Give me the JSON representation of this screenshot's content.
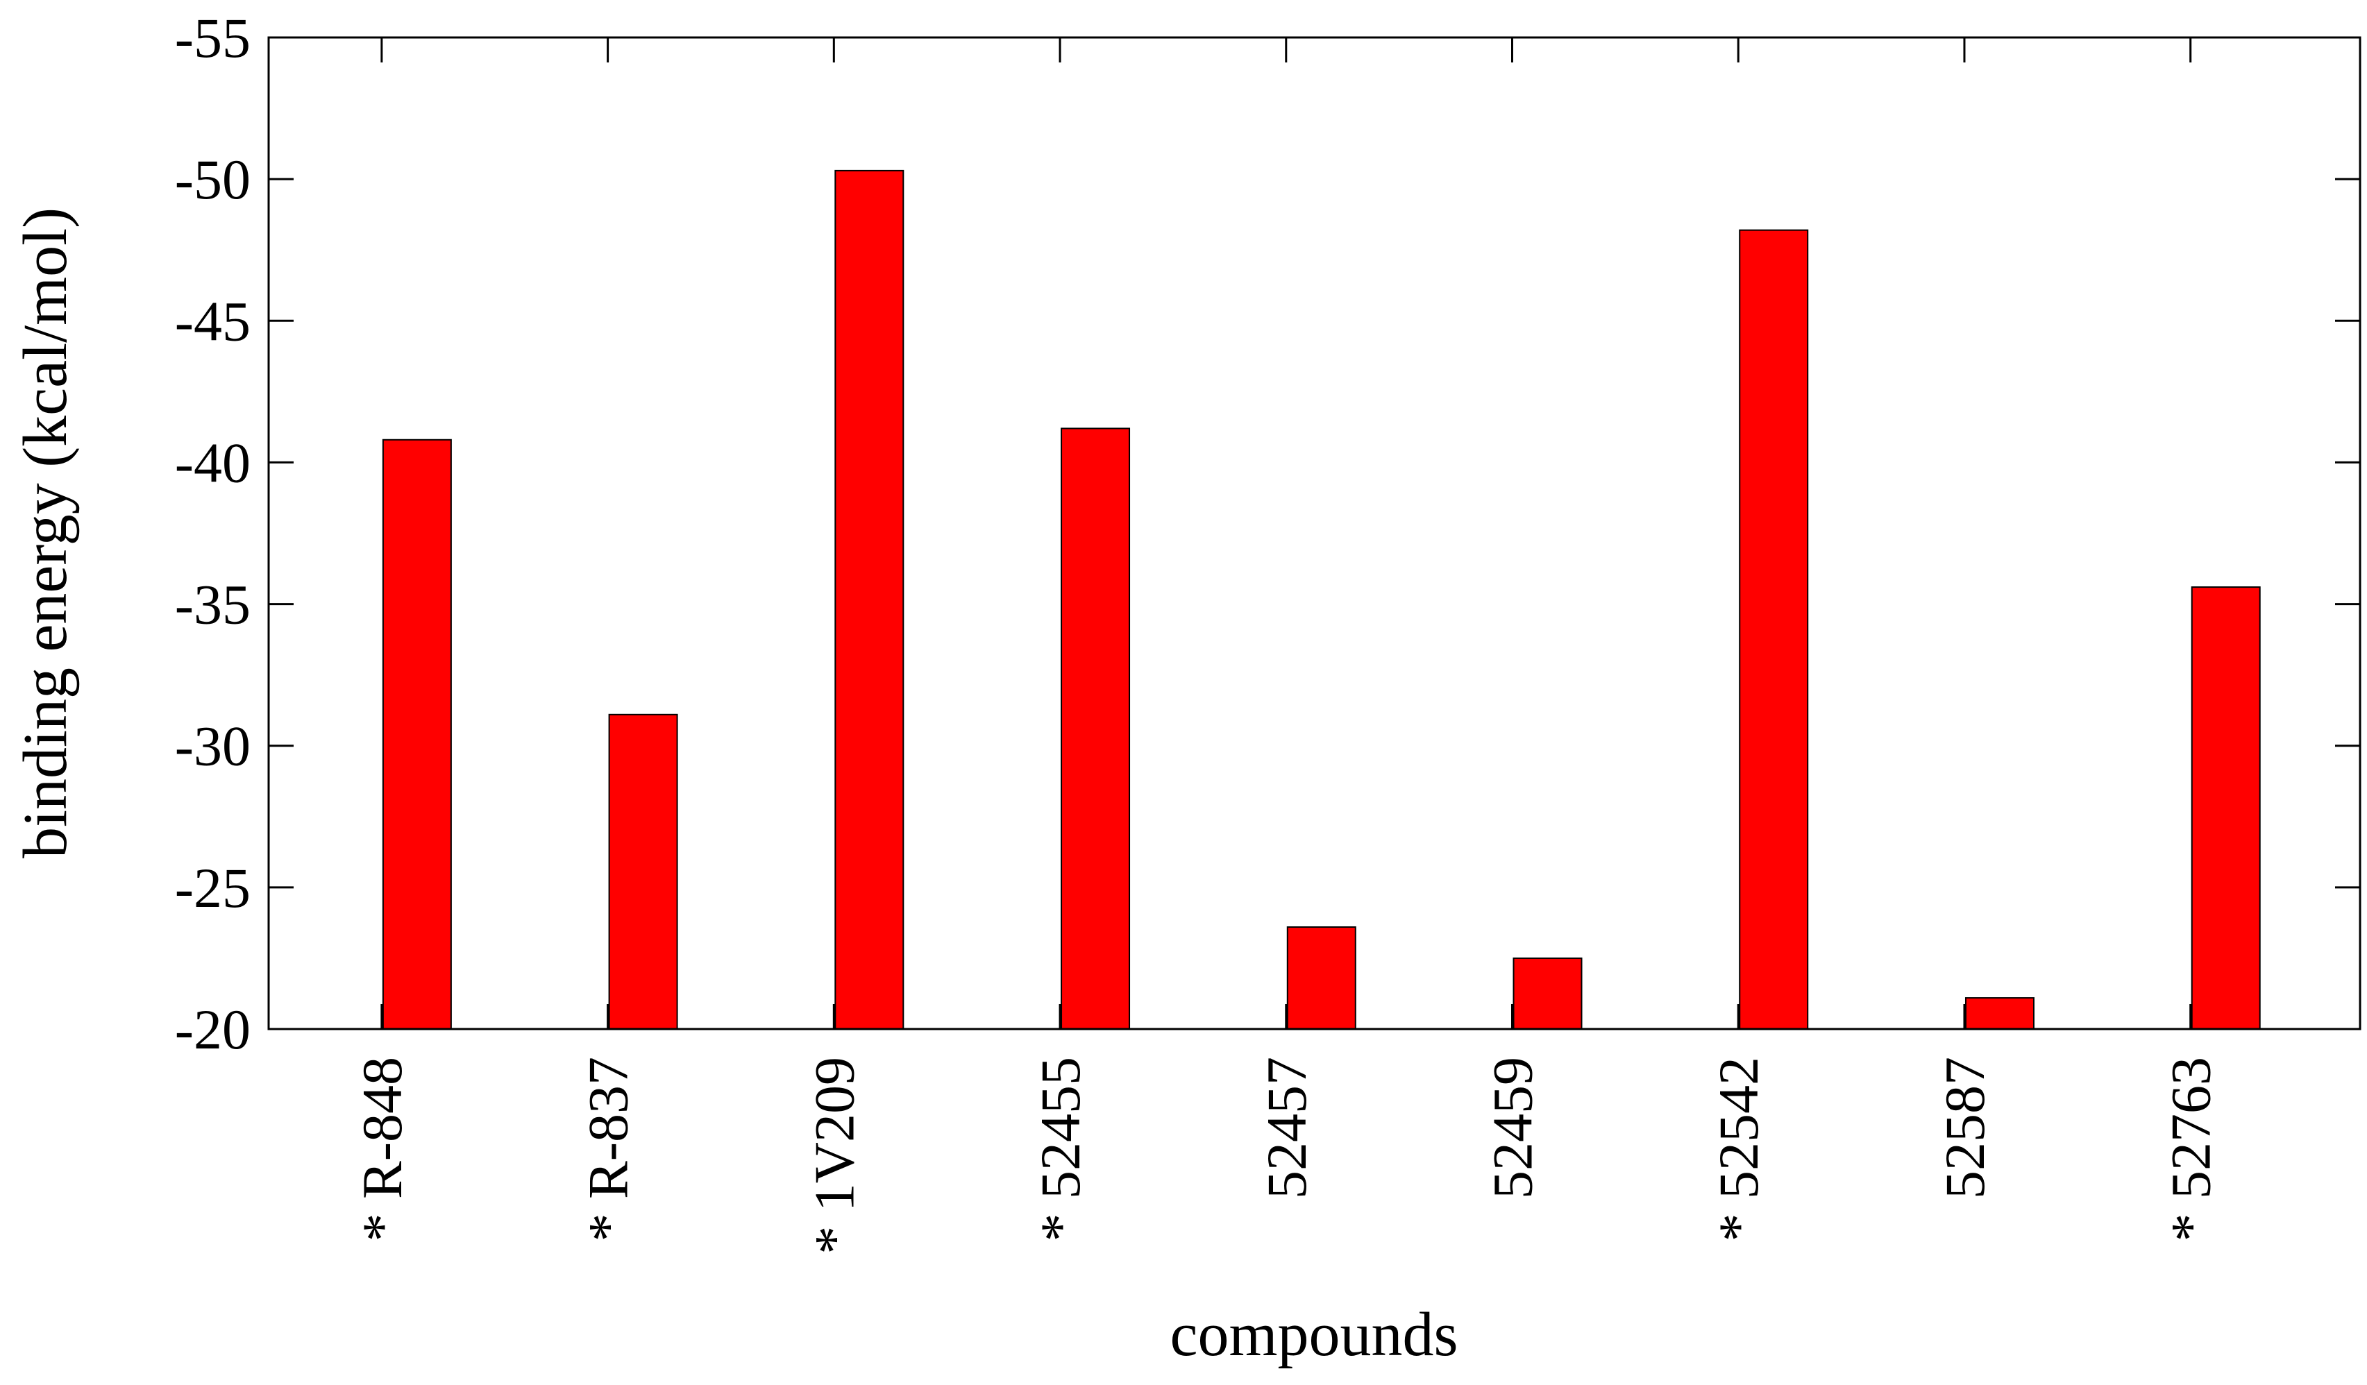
{
  "chart_data": {
    "type": "bar",
    "xlabel": "compounds",
    "ylabel": "binding energy (kcal/mol)",
    "ylim": [
      -20,
      -55
    ],
    "y_axis_inverted": true,
    "yticks": [
      -20,
      -25,
      -30,
      -35,
      -40,
      -45,
      -50,
      -55
    ],
    "categories": [
      "* R-848",
      "* R-837",
      "* 1V209",
      "* 52455",
      "52457",
      "52459",
      "* 52542",
      "52587",
      "* 52763"
    ],
    "values": [
      -40.8,
      -31.1,
      -50.3,
      -41.2,
      -23.6,
      -22.5,
      -48.2,
      -21.1,
      -35.6
    ],
    "bar_color": "#ff0000",
    "grid": false,
    "legend": "none"
  }
}
